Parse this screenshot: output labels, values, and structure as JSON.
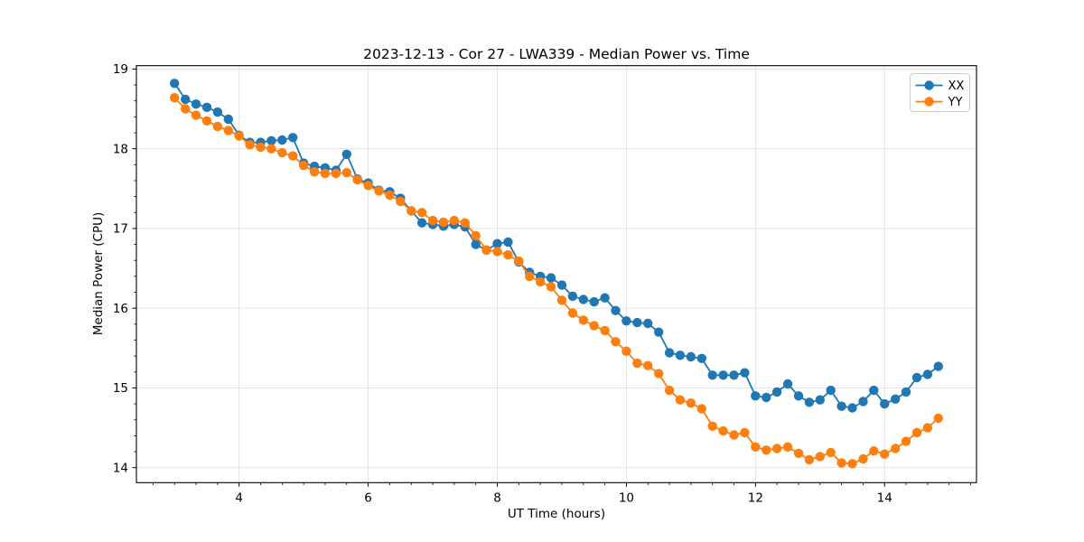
{
  "chart_data": {
    "type": "line",
    "title": "2023-12-13 - Cor 27 - LWA339 - Median Power vs. Time",
    "xlabel": "UT Time (hours)",
    "ylabel": "Median Power (CPU)",
    "xlim": [
      2.409,
      15.424
    ],
    "ylim": [
      13.812,
      19.042
    ],
    "xticks": [
      4,
      6,
      8,
      10,
      12,
      14
    ],
    "yticks": [
      14,
      15,
      16,
      17,
      18,
      19
    ],
    "x_minor_step": 0.3333333,
    "y_minor_step": 0.2,
    "grid": true,
    "grid_color": "#e0e0e0",
    "spine_color": "#000000",
    "background_color": "#ffffff",
    "legend_position": "upper right",
    "marker": "circle",
    "x": [
      3.0,
      3.167,
      3.333,
      3.5,
      3.667,
      3.833,
      4.0,
      4.167,
      4.333,
      4.5,
      4.667,
      4.833,
      5.0,
      5.167,
      5.333,
      5.5,
      5.667,
      5.833,
      6.0,
      6.167,
      6.333,
      6.5,
      6.667,
      6.833,
      7.0,
      7.167,
      7.333,
      7.5,
      7.667,
      7.833,
      8.0,
      8.167,
      8.333,
      8.5,
      8.667,
      8.833,
      9.0,
      9.167,
      9.333,
      9.5,
      9.667,
      9.833,
      10.0,
      10.167,
      10.333,
      10.5,
      10.667,
      10.833,
      11.0,
      11.167,
      11.333,
      11.5,
      11.667,
      11.833,
      12.0,
      12.167,
      12.333,
      12.5,
      12.667,
      12.833,
      13.0,
      13.167,
      13.333,
      13.5,
      13.667,
      13.833,
      14.0,
      14.167,
      14.333,
      14.5,
      14.667,
      14.833
    ],
    "series": [
      {
        "name": "XX",
        "color": "#1f77b4",
        "values": [
          18.82,
          18.62,
          18.56,
          18.52,
          18.46,
          18.37,
          18.17,
          18.08,
          18.08,
          18.1,
          18.11,
          18.14,
          17.82,
          17.78,
          17.76,
          17.73,
          17.93,
          17.62,
          17.57,
          17.48,
          17.46,
          17.38,
          17.22,
          17.07,
          17.05,
          17.03,
          17.05,
          17.02,
          16.8,
          16.73,
          16.81,
          16.83,
          16.58,
          16.45,
          16.4,
          16.38,
          16.29,
          16.15,
          16.11,
          16.08,
          16.13,
          15.97,
          15.84,
          15.82,
          15.81,
          15.7,
          15.44,
          15.41,
          15.39,
          15.37,
          15.16,
          15.16,
          15.16,
          15.19,
          14.9,
          14.88,
          14.95,
          15.05,
          14.9,
          14.82,
          14.85,
          14.97,
          14.77,
          14.75,
          14.83,
          14.97,
          14.8,
          14.86,
          14.95,
          15.13,
          15.17,
          15.27
        ]
      },
      {
        "name": "YY",
        "color": "#ff7f0e",
        "values": [
          18.64,
          18.5,
          18.42,
          18.35,
          18.28,
          18.23,
          18.16,
          18.05,
          18.02,
          18.0,
          17.95,
          17.91,
          17.79,
          17.71,
          17.69,
          17.69,
          17.7,
          17.61,
          17.54,
          17.47,
          17.42,
          17.34,
          17.22,
          17.2,
          17.1,
          17.08,
          17.1,
          17.07,
          16.91,
          16.73,
          16.71,
          16.67,
          16.59,
          16.4,
          16.33,
          16.27,
          16.1,
          15.94,
          15.85,
          15.78,
          15.72,
          15.58,
          15.46,
          15.31,
          15.28,
          15.18,
          14.97,
          14.85,
          14.81,
          14.74,
          14.52,
          14.46,
          14.41,
          14.44,
          14.26,
          14.22,
          14.24,
          14.26,
          14.18,
          14.1,
          14.14,
          14.19,
          14.06,
          14.05,
          14.11,
          14.21,
          14.17,
          14.24,
          14.33,
          14.44,
          14.5,
          14.62
        ]
      }
    ]
  }
}
